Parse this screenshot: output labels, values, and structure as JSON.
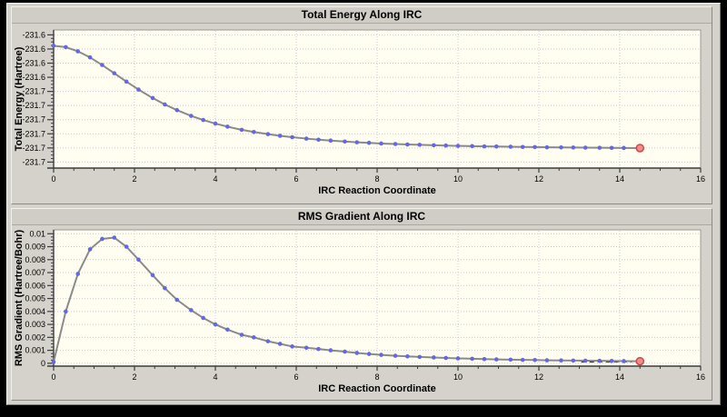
{
  "colors": {
    "frame": "#000000",
    "panel_bg": "#d5d2cb",
    "titlebar_bg": "#d0cdc6",
    "plot_bg": "#fffef0",
    "grid": "#c9c9db",
    "axis": "#3c3c3c",
    "text": "#000000",
    "line": "#8a8a8a",
    "marker": "#6468e2",
    "endpoint_fill": "#ef8e8e",
    "endpoint_stroke": "#d64545",
    "annotation": "#000000"
  },
  "chart_data": [
    {
      "type": "line",
      "title": "Total Energy Along IRC",
      "xlabel": "IRC Reaction Coordinate",
      "ylabel": "Total Energy (Hartree)",
      "xlim": [
        0,
        16
      ],
      "ylim": [
        -231.7225,
        -231.5955
      ],
      "grid": true,
      "legend": null,
      "x_tick_values": [
        0,
        2,
        4,
        6,
        8,
        10,
        12,
        14,
        16
      ],
      "x_tick_labels": [
        "0",
        "2",
        "4",
        "6",
        "8",
        "10",
        "12",
        "14",
        "16"
      ],
      "x_minor_step": 0.5,
      "x_grid_values": [
        2,
        4,
        6,
        8,
        10,
        12,
        14
      ],
      "y_tick_values": [
        -231.6,
        -231.613,
        -231.626,
        -231.639,
        -231.652,
        -231.665,
        -231.678,
        -231.691,
        -231.704,
        -231.717
      ],
      "y_tick_labels": [
        "-231.6",
        "-231.6",
        "-231.6",
        "-231.6",
        "-231.7",
        "-231.7",
        "-231.7",
        "-231.7",
        "-231.7",
        "-231.7"
      ],
      "series": [
        {
          "name": "Total Energy",
          "x": [
            0,
            0.3,
            0.6,
            0.9,
            1.2,
            1.5,
            1.8,
            2.1,
            2.45,
            2.75,
            3.05,
            3.4,
            3.7,
            4,
            4.3,
            4.65,
            4.95,
            5.3,
            5.6,
            5.9,
            6.25,
            6.55,
            6.85,
            7.2,
            7.5,
            7.8,
            8.1,
            8.45,
            8.75,
            9.05,
            9.4,
            9.7,
            10,
            10.35,
            10.65,
            10.95,
            11.3,
            11.6,
            11.9,
            12.2,
            12.55,
            12.85,
            13.15,
            13.5,
            13.8,
            14.1,
            14.5
          ],
          "y": [
            -231.61,
            -231.6113,
            -231.6151,
            -231.6207,
            -231.6277,
            -231.6353,
            -231.643,
            -231.6503,
            -231.6581,
            -231.664,
            -231.6692,
            -231.6745,
            -231.6783,
            -231.6816,
            -231.6844,
            -231.6873,
            -231.6893,
            -231.6913,
            -231.6928,
            -231.6941,
            -231.6954,
            -231.6964,
            -231.6972,
            -231.6981,
            -231.6988,
            -231.6993,
            -231.6999,
            -231.7004,
            -231.7008,
            -231.7011,
            -231.7015,
            -231.7018,
            -231.7021,
            -231.7023,
            -231.7026,
            -231.7027,
            -231.7029,
            -231.7031,
            -231.7032,
            -231.7034,
            -231.7035,
            -231.7036,
            -231.7037,
            -231.7038,
            -231.7039,
            -231.704,
            -231.7041
          ]
        }
      ],
      "endpoint_highlight": true,
      "annotation": null
    },
    {
      "type": "line",
      "title": "RMS Gradient Along IRC",
      "xlabel": "IRC Reaction Coordinate",
      "ylabel": "RMS Gradient (Hartree/Bohr)",
      "xlim": [
        0,
        16
      ],
      "ylim": [
        -0.00022,
        0.0103
      ],
      "grid": true,
      "legend": null,
      "x_tick_values": [
        0,
        2,
        4,
        6,
        8,
        10,
        12,
        14,
        16
      ],
      "x_tick_labels": [
        "0",
        "2",
        "4",
        "6",
        "8",
        "10",
        "12",
        "14",
        "16"
      ],
      "x_minor_step": 0.5,
      "x_grid_values": [
        2,
        4,
        6,
        8,
        10,
        12,
        14
      ],
      "y_tick_values": [
        0,
        0.001,
        0.002,
        0.003,
        0.004,
        0.005,
        0.006,
        0.007,
        0.008,
        0.009,
        0.01
      ],
      "y_tick_labels": [
        "0",
        "0.001",
        "0.002",
        "0.003",
        "0.004",
        "0.005",
        "0.006",
        "0.007",
        "0.008",
        "0.009",
        "0.01"
      ],
      "series": [
        {
          "name": "RMS Gradient",
          "x": [
            0,
            0.3,
            0.6,
            0.9,
            1.2,
            1.5,
            1.8,
            2.1,
            2.45,
            2.75,
            3.05,
            3.4,
            3.7,
            4,
            4.3,
            4.65,
            4.95,
            5.3,
            5.6,
            5.9,
            6.25,
            6.55,
            6.85,
            7.2,
            7.5,
            7.8,
            8.1,
            8.45,
            8.75,
            9.05,
            9.4,
            9.7,
            10,
            10.35,
            10.65,
            10.95,
            11.3,
            11.6,
            11.9,
            12.2,
            12.55,
            12.85,
            13.15,
            13.5,
            13.8,
            14.1,
            14.5
          ],
          "y": [
            0.0001,
            0.004,
            0.0069,
            0.0088,
            0.0096,
            0.0097,
            0.009,
            0.008,
            0.0068,
            0.0058,
            0.0049,
            0.0041,
            0.0035,
            0.003,
            0.0026,
            0.0022,
            0.002,
            0.0017,
            0.0015,
            0.0013,
            0.0012,
            0.0011,
            0.001,
            0.0009,
            0.0008,
            0.00072,
            0.00065,
            0.00058,
            0.00053,
            0.00049,
            0.00045,
            0.00041,
            0.00038,
            0.00035,
            0.00032,
            0.0003,
            0.00028,
            0.00026,
            0.00025,
            0.00023,
            0.00022,
            0.00021,
            0.0002,
            0.00019,
            0.00018,
            0.00017,
            0.00016
          ]
        }
      ],
      "endpoint_highlight": true,
      "annotation": {
        "type": "dashed-line",
        "x1": 13.05,
        "x2": 14.3,
        "y": 0.00012
      }
    }
  ]
}
